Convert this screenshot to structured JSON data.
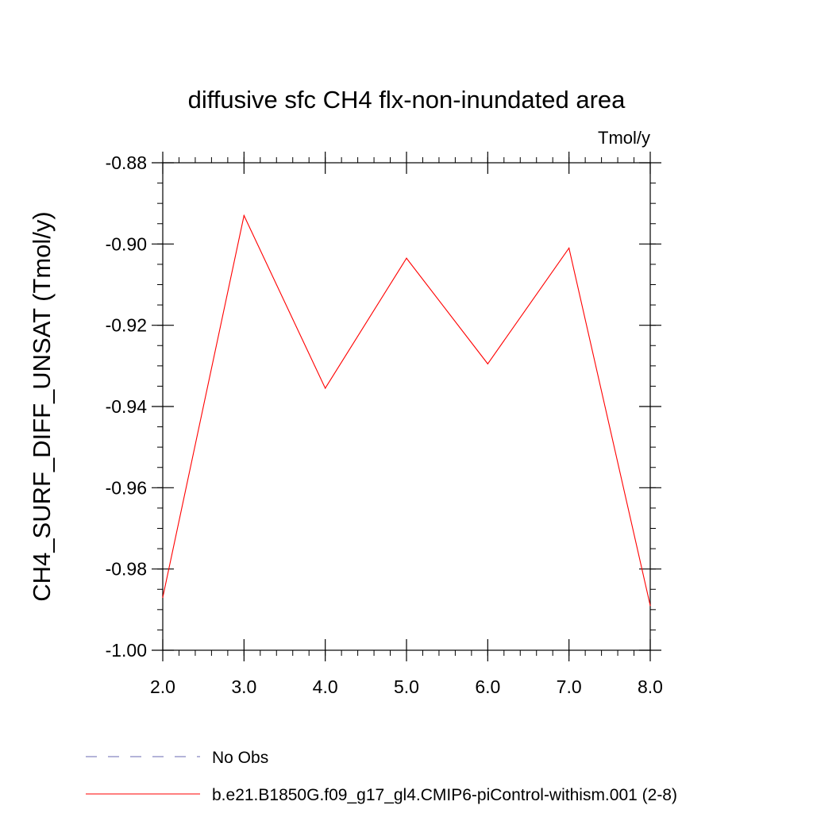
{
  "chart_data": {
    "type": "line",
    "title": "diffusive sfc CH4 flx-non-inundated area",
    "units_label": "Tmol/y",
    "xlabel": "",
    "ylabel": "CH4_SURF_DIFF_UNSAT  (Tmol/y)",
    "xlim": [
      2.0,
      8.0
    ],
    "ylim": [
      -1.0,
      -0.88
    ],
    "x_ticks": [
      2.0,
      3.0,
      4.0,
      5.0,
      6.0,
      7.0,
      8.0
    ],
    "x_tick_labels": [
      "2.0",
      "3.0",
      "4.0",
      "5.0",
      "6.0",
      "7.0",
      "8.0"
    ],
    "y_ticks": [
      -1.0,
      -0.98,
      -0.96,
      -0.94,
      -0.92,
      -0.9,
      -0.88
    ],
    "y_tick_labels": [
      "-1.00",
      "-0.98",
      "-0.96",
      "-0.94",
      "-0.92",
      "-0.90",
      "-0.88"
    ],
    "y_minor_step": 0.005,
    "x_minor_step": 0.2,
    "grid": false,
    "legend_position": "bottom",
    "series": [
      {
        "name": "No Obs",
        "color": "#6a6ab0",
        "dash": true,
        "x": [],
        "y": []
      },
      {
        "name": "b.e21.B1850G.f09_g17_gl4.CMIP6-piControl-withism.001 (2-8)",
        "color": "#ff0000",
        "dash": false,
        "x": [
          2.0,
          3.0,
          4.0,
          5.0,
          6.0,
          7.0,
          8.0
        ],
        "y": [
          -0.987,
          -0.893,
          -0.9355,
          -0.9035,
          -0.9295,
          -0.901,
          -0.989
        ]
      }
    ]
  }
}
